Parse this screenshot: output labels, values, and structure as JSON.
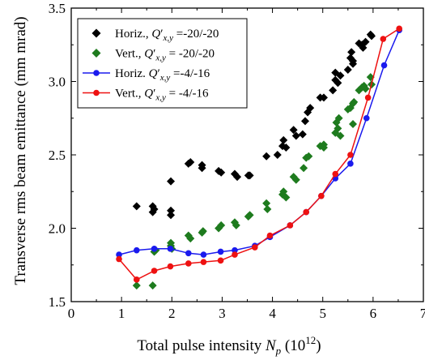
{
  "chart_data": {
    "type": "scatter",
    "xlabel": "Total pulse intensity N_p (10^12)",
    "xlabel_parts": {
      "main": "Total pulse intensity ",
      "sym": "N",
      "sub": "p",
      "unit_open": " (10",
      "exp": "12",
      "unit_close": ")"
    },
    "ylabel": "Transverse rms beam emittance (mm mrad)",
    "xlim": [
      0,
      7
    ],
    "ylim": [
      1.5,
      3.5
    ],
    "xticks": [
      "0",
      "1",
      "2",
      "3",
      "4",
      "5",
      "6",
      "7"
    ],
    "yticks": [
      "1.5",
      "2.0",
      "2.5",
      "3.0",
      "3.5"
    ],
    "legend_position": "top-left",
    "series": [
      {
        "name": "Horiz., Q'x,y =-20/-20",
        "label_prefix": "Horiz., ",
        "label_suffix": " =-20/-20",
        "marker": "diamond",
        "line": false,
        "color": "#000000",
        "points": [
          [
            1.3,
            2.15
          ],
          [
            1.62,
            2.15
          ],
          [
            1.62,
            2.11
          ],
          [
            1.65,
            2.13
          ],
          [
            1.98,
            2.32
          ],
          [
            1.98,
            2.12
          ],
          [
            1.98,
            2.09
          ],
          [
            2.33,
            2.44
          ],
          [
            2.37,
            2.45
          ],
          [
            2.6,
            2.41
          ],
          [
            2.6,
            2.43
          ],
          [
            2.93,
            2.39
          ],
          [
            2.98,
            2.38
          ],
          [
            3.25,
            2.37
          ],
          [
            3.3,
            2.35
          ],
          [
            3.52,
            2.36
          ],
          [
            3.55,
            2.36
          ],
          [
            3.88,
            2.49
          ],
          [
            4.1,
            2.5
          ],
          [
            4.2,
            2.56
          ],
          [
            4.22,
            2.6
          ],
          [
            4.27,
            2.55
          ],
          [
            4.42,
            2.67
          ],
          [
            4.47,
            2.63
          ],
          [
            4.6,
            2.64
          ],
          [
            4.65,
            2.73
          ],
          [
            4.7,
            2.79
          ],
          [
            4.75,
            2.82
          ],
          [
            4.95,
            2.89
          ],
          [
            5.02,
            2.89
          ],
          [
            5.2,
            2.94
          ],
          [
            5.25,
            3.01
          ],
          [
            5.25,
            3.06
          ],
          [
            5.3,
            2.99
          ],
          [
            5.35,
            3.04
          ],
          [
            5.5,
            3.08
          ],
          [
            5.55,
            3.16
          ],
          [
            5.57,
            3.2
          ],
          [
            5.6,
            3.14
          ],
          [
            5.6,
            3.12
          ],
          [
            5.72,
            3.26
          ],
          [
            5.78,
            3.25
          ],
          [
            5.8,
            3.23
          ],
          [
            5.85,
            3.27
          ],
          [
            5.95,
            3.32
          ],
          [
            5.97,
            3.31
          ]
        ]
      },
      {
        "name": "Vert., Q'x,y = -20/-20",
        "label_prefix": "Vert., ",
        "label_suffix": " = -20/-20",
        "marker": "diamond",
        "line": false,
        "color": "#1e7b1e",
        "points": [
          [
            1.3,
            1.61
          ],
          [
            1.62,
            1.61
          ],
          [
            1.65,
            1.84
          ],
          [
            1.68,
            1.85
          ],
          [
            1.98,
            1.88
          ],
          [
            1.98,
            1.9
          ],
          [
            2.0,
            1.86
          ],
          [
            2.33,
            1.95
          ],
          [
            2.37,
            1.93
          ],
          [
            2.6,
            1.97
          ],
          [
            2.62,
            1.98
          ],
          [
            2.93,
            2.0
          ],
          [
            2.98,
            2.02
          ],
          [
            3.25,
            2.04
          ],
          [
            3.28,
            2.02
          ],
          [
            3.52,
            2.08
          ],
          [
            3.55,
            2.09
          ],
          [
            3.88,
            2.17
          ],
          [
            3.9,
            2.13
          ],
          [
            4.2,
            2.23
          ],
          [
            4.22,
            2.25
          ],
          [
            4.27,
            2.21
          ],
          [
            4.42,
            2.35
          ],
          [
            4.47,
            2.33
          ],
          [
            4.62,
            2.41
          ],
          [
            4.67,
            2.48
          ],
          [
            4.72,
            2.49
          ],
          [
            4.95,
            2.56
          ],
          [
            5.02,
            2.57
          ],
          [
            5.02,
            2.55
          ],
          [
            5.25,
            2.65
          ],
          [
            5.27,
            2.72
          ],
          [
            5.3,
            2.68
          ],
          [
            5.32,
            2.75
          ],
          [
            5.35,
            2.63
          ],
          [
            5.5,
            2.81
          ],
          [
            5.55,
            2.82
          ],
          [
            5.6,
            2.85
          ],
          [
            5.62,
            2.86
          ],
          [
            5.6,
            2.71
          ],
          [
            5.72,
            2.94
          ],
          [
            5.78,
            2.96
          ],
          [
            5.82,
            2.97
          ],
          [
            5.85,
            2.95
          ],
          [
            5.95,
            3.03
          ],
          [
            5.97,
            2.98
          ]
        ]
      },
      {
        "name": "Horiz. Q'x,y =-4/-16",
        "label_prefix": "Horiz. ",
        "label_suffix": " =-4/-16",
        "marker": "circle",
        "line": true,
        "color": "#1a1aee",
        "points": [
          [
            0.95,
            1.82
          ],
          [
            1.3,
            1.85
          ],
          [
            1.65,
            1.86
          ],
          [
            1.97,
            1.86
          ],
          [
            2.33,
            1.83
          ],
          [
            2.63,
            1.82
          ],
          [
            2.97,
            1.84
          ],
          [
            3.25,
            1.85
          ],
          [
            3.65,
            1.88
          ],
          [
            3.95,
            1.94
          ],
          [
            4.35,
            2.02
          ],
          [
            4.67,
            2.11
          ],
          [
            4.97,
            2.22
          ],
          [
            5.25,
            2.34
          ],
          [
            5.55,
            2.44
          ],
          [
            5.87,
            2.75
          ],
          [
            6.22,
            3.11
          ],
          [
            6.52,
            3.35
          ]
        ]
      },
      {
        "name": "Vert., Q'x,y = -4/-16",
        "label_prefix": "Vert., ",
        "label_suffix": " = -4/-16",
        "marker": "circle",
        "line": true,
        "color": "#ee1111",
        "points": [
          [
            0.95,
            1.79
          ],
          [
            1.3,
            1.65
          ],
          [
            1.65,
            1.71
          ],
          [
            1.97,
            1.74
          ],
          [
            2.33,
            1.76
          ],
          [
            2.63,
            1.77
          ],
          [
            2.97,
            1.78
          ],
          [
            3.25,
            1.82
          ],
          [
            3.65,
            1.87
          ],
          [
            3.95,
            1.95
          ],
          [
            4.35,
            2.02
          ],
          [
            4.67,
            2.11
          ],
          [
            4.97,
            2.22
          ],
          [
            5.25,
            2.37
          ],
          [
            5.55,
            2.5
          ],
          [
            5.9,
            2.89
          ],
          [
            6.2,
            3.29
          ],
          [
            6.52,
            3.36
          ]
        ]
      }
    ]
  }
}
